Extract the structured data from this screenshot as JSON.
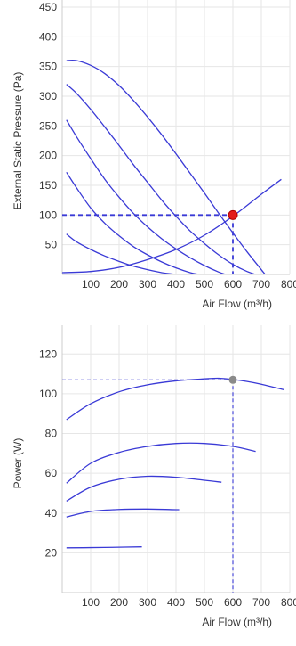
{
  "colors": {
    "series": "#3a3ad6",
    "operating_point": "#e31b1b",
    "power_point": "#8a8a8a",
    "grid": "#e6e6e6",
    "text": "#333333"
  },
  "chart_data": [
    {
      "type": "line",
      "title": "",
      "xlabel": "Air Flow (m³/h)",
      "ylabel": "External Static Pressure (Pa)",
      "xlim": [
        0,
        800
      ],
      "ylim": [
        0,
        450
      ],
      "xticks": [
        100,
        200,
        300,
        400,
        500,
        600,
        700,
        800
      ],
      "yticks": [
        50,
        100,
        150,
        200,
        250,
        300,
        350,
        400,
        450
      ],
      "grid": true,
      "series": [
        {
          "x": [
            15,
            50,
            100,
            150,
            200,
            250,
            300,
            350,
            400,
            450,
            500,
            550,
            600,
            650,
            700,
            750,
            770
          ],
          "y": [
            360,
            360,
            352,
            338,
            318,
            293,
            265,
            235,
            203,
            170,
            137,
            103,
            70,
            38,
            8,
            -22,
            -35
          ]
        },
        {
          "x": [
            15,
            50,
            100,
            150,
            200,
            250,
            300,
            350,
            400,
            450,
            500,
            550,
            600,
            650,
            700
          ],
          "y": [
            320,
            305,
            278,
            248,
            217,
            185,
            155,
            125,
            98,
            73,
            52,
            33,
            17,
            5,
            -3
          ]
        },
        {
          "x": [
            15,
            50,
            100,
            150,
            200,
            250,
            300,
            350,
            400,
            450,
            500,
            550,
            575
          ],
          "y": [
            260,
            232,
            195,
            160,
            130,
            103,
            80,
            60,
            43,
            28,
            15,
            4,
            0
          ]
        },
        {
          "x": [
            15,
            50,
            100,
            150,
            200,
            250,
            300,
            350,
            400,
            450,
            480
          ],
          "y": [
            172,
            146,
            112,
            86,
            65,
            47,
            33,
            21,
            11,
            3,
            0
          ]
        },
        {
          "x": [
            15,
            50,
            100,
            150,
            200,
            250,
            300,
            350,
            400
          ],
          "y": [
            68,
            55,
            42,
            31,
            22,
            14,
            8,
            3,
            0
          ]
        },
        {
          "x": [
            0,
            100,
            200,
            300,
            400,
            500,
            600,
            700,
            770
          ],
          "y": [
            3,
            5,
            12,
            25,
            42,
            66,
            98,
            135,
            160
          ]
        }
      ],
      "operating_point": {
        "x": 600,
        "y": 100
      }
    },
    {
      "type": "line",
      "title": "",
      "xlabel": "Air Flow (m³/h)",
      "ylabel": "Power (W)",
      "xlim": [
        0,
        800
      ],
      "ylim": [
        0,
        130
      ],
      "xticks": [
        100,
        200,
        300,
        400,
        500,
        600,
        700,
        800
      ],
      "yticks": [
        20,
        40,
        60,
        80,
        100,
        120
      ],
      "grid": true,
      "series": [
        {
          "x": [
            15,
            100,
            200,
            300,
            400,
            500,
            550,
            600,
            650,
            700,
            780
          ],
          "y": [
            87,
            95,
            101,
            104.5,
            106.5,
            107.5,
            107.8,
            107.2,
            106.2,
            104.8,
            102
          ]
        },
        {
          "x": [
            15,
            100,
            200,
            300,
            400,
            500,
            600,
            680
          ],
          "y": [
            55,
            65,
            70.5,
            73.5,
            75,
            75,
            73.5,
            71
          ]
        },
        {
          "x": [
            15,
            100,
            200,
            300,
            400,
            500,
            560
          ],
          "y": [
            46,
            53,
            57,
            58.5,
            58,
            56.5,
            55.5
          ]
        },
        {
          "x": [
            15,
            100,
            200,
            300,
            400,
            410
          ],
          "y": [
            38,
            40.8,
            41.8,
            42,
            41.7,
            41.7
          ]
        },
        {
          "x": [
            15,
            100,
            200,
            280
          ],
          "y": [
            22.5,
            22.6,
            22.8,
            23
          ]
        }
      ],
      "operating_point": {
        "x": 600,
        "y": 107
      }
    }
  ]
}
